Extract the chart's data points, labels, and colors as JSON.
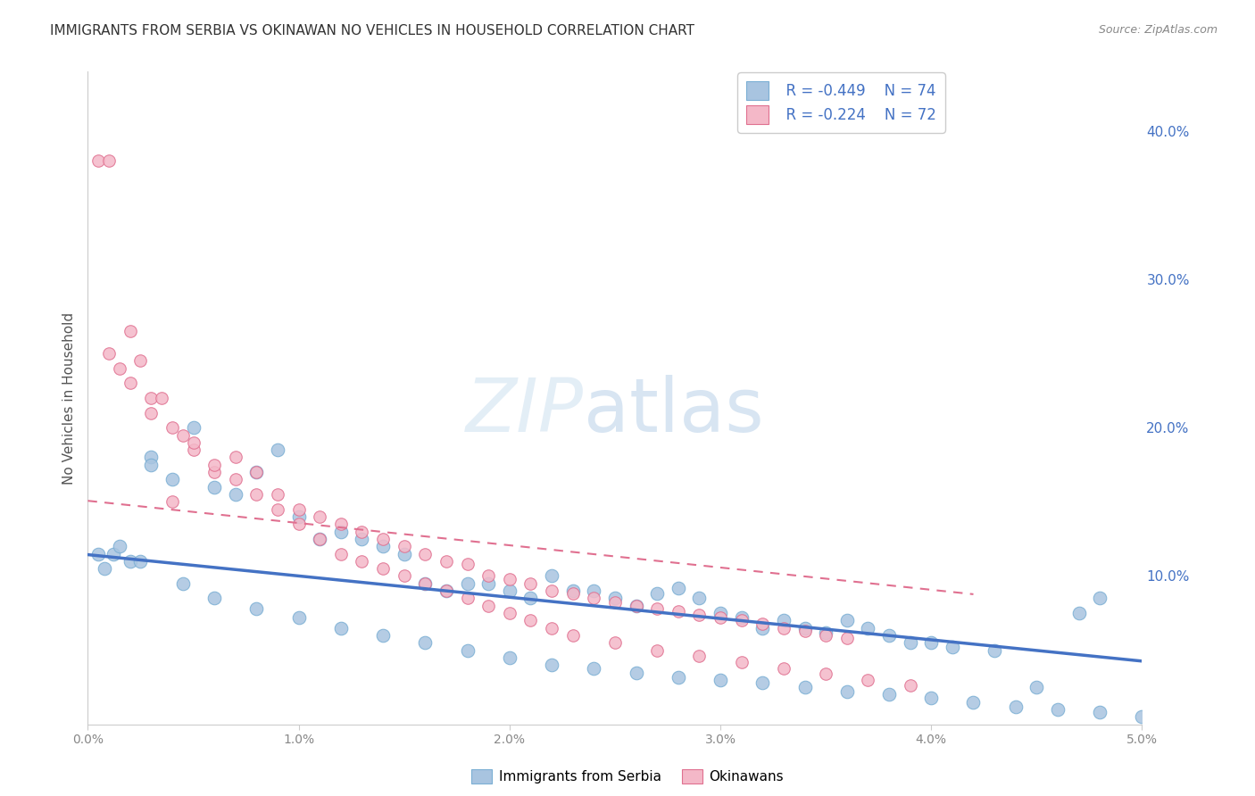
{
  "title": "IMMIGRANTS FROM SERBIA VS OKINAWAN NO VEHICLES IN HOUSEHOLD CORRELATION CHART",
  "source": "Source: ZipAtlas.com",
  "ylabel": "No Vehicles in Household",
  "xlim": [
    0.0,
    0.05
  ],
  "ylim": [
    0.0,
    0.44
  ],
  "series1_label": "Immigrants from Serbia",
  "series1_color": "#a8c4e0",
  "series1_edge": "#7bafd4",
  "series1_line_color": "#4472c4",
  "series1_R": -0.449,
  "series1_N": 74,
  "series2_label": "Okinawans",
  "series2_color": "#f4b8c8",
  "series2_edge": "#e07090",
  "series2_line_color": "#e07090",
  "series2_R": -0.224,
  "series2_N": 72,
  "background_color": "#ffffff",
  "grid_color": "#dddddd",
  "title_color": "#333333",
  "axis_label_color": "#4472c4",
  "scatter1_x": [
    0.0008,
    0.0012,
    0.0015,
    0.002,
    0.003,
    0.004,
    0.005,
    0.006,
    0.007,
    0.008,
    0.009,
    0.01,
    0.011,
    0.012,
    0.013,
    0.014,
    0.015,
    0.016,
    0.017,
    0.018,
    0.019,
    0.02,
    0.021,
    0.022,
    0.023,
    0.024,
    0.025,
    0.026,
    0.027,
    0.028,
    0.029,
    0.03,
    0.031,
    0.032,
    0.033,
    0.034,
    0.035,
    0.036,
    0.037,
    0.038,
    0.039,
    0.04,
    0.041,
    0.043,
    0.045,
    0.047,
    0.048,
    0.0005,
    0.0025,
    0.0045,
    0.006,
    0.008,
    0.01,
    0.012,
    0.014,
    0.016,
    0.018,
    0.02,
    0.022,
    0.024,
    0.026,
    0.028,
    0.03,
    0.032,
    0.034,
    0.036,
    0.038,
    0.04,
    0.042,
    0.044,
    0.046,
    0.048,
    0.05,
    0.003
  ],
  "scatter1_y": [
    0.105,
    0.115,
    0.12,
    0.11,
    0.18,
    0.165,
    0.2,
    0.16,
    0.155,
    0.17,
    0.185,
    0.14,
    0.125,
    0.13,
    0.125,
    0.12,
    0.115,
    0.095,
    0.09,
    0.095,
    0.095,
    0.09,
    0.085,
    0.1,
    0.09,
    0.09,
    0.085,
    0.08,
    0.088,
    0.092,
    0.085,
    0.075,
    0.072,
    0.065,
    0.07,
    0.065,
    0.062,
    0.07,
    0.065,
    0.06,
    0.055,
    0.055,
    0.052,
    0.05,
    0.025,
    0.075,
    0.085,
    0.115,
    0.11,
    0.095,
    0.085,
    0.078,
    0.072,
    0.065,
    0.06,
    0.055,
    0.05,
    0.045,
    0.04,
    0.038,
    0.035,
    0.032,
    0.03,
    0.028,
    0.025,
    0.022,
    0.02,
    0.018,
    0.015,
    0.012,
    0.01,
    0.008,
    0.005,
    0.175
  ],
  "scatter2_x": [
    0.0005,
    0.001,
    0.0015,
    0.002,
    0.0025,
    0.003,
    0.0035,
    0.004,
    0.0045,
    0.005,
    0.006,
    0.007,
    0.008,
    0.009,
    0.01,
    0.011,
    0.012,
    0.013,
    0.014,
    0.015,
    0.016,
    0.017,
    0.018,
    0.019,
    0.02,
    0.021,
    0.022,
    0.023,
    0.024,
    0.025,
    0.026,
    0.027,
    0.028,
    0.029,
    0.03,
    0.031,
    0.032,
    0.033,
    0.034,
    0.035,
    0.036,
    0.001,
    0.002,
    0.003,
    0.004,
    0.005,
    0.006,
    0.007,
    0.008,
    0.009,
    0.01,
    0.011,
    0.012,
    0.013,
    0.014,
    0.015,
    0.016,
    0.017,
    0.018,
    0.019,
    0.02,
    0.021,
    0.022,
    0.023,
    0.025,
    0.027,
    0.029,
    0.031,
    0.033,
    0.035,
    0.037,
    0.039
  ],
  "scatter2_y": [
    0.38,
    0.38,
    0.24,
    0.265,
    0.245,
    0.22,
    0.22,
    0.15,
    0.195,
    0.185,
    0.17,
    0.18,
    0.17,
    0.155,
    0.145,
    0.14,
    0.135,
    0.13,
    0.125,
    0.12,
    0.115,
    0.11,
    0.108,
    0.1,
    0.098,
    0.095,
    0.09,
    0.088,
    0.085,
    0.082,
    0.08,
    0.078,
    0.076,
    0.074,
    0.072,
    0.07,
    0.068,
    0.065,
    0.063,
    0.06,
    0.058,
    0.25,
    0.23,
    0.21,
    0.2,
    0.19,
    0.175,
    0.165,
    0.155,
    0.145,
    0.135,
    0.125,
    0.115,
    0.11,
    0.105,
    0.1,
    0.095,
    0.09,
    0.085,
    0.08,
    0.075,
    0.07,
    0.065,
    0.06,
    0.055,
    0.05,
    0.046,
    0.042,
    0.038,
    0.034,
    0.03,
    0.026
  ]
}
